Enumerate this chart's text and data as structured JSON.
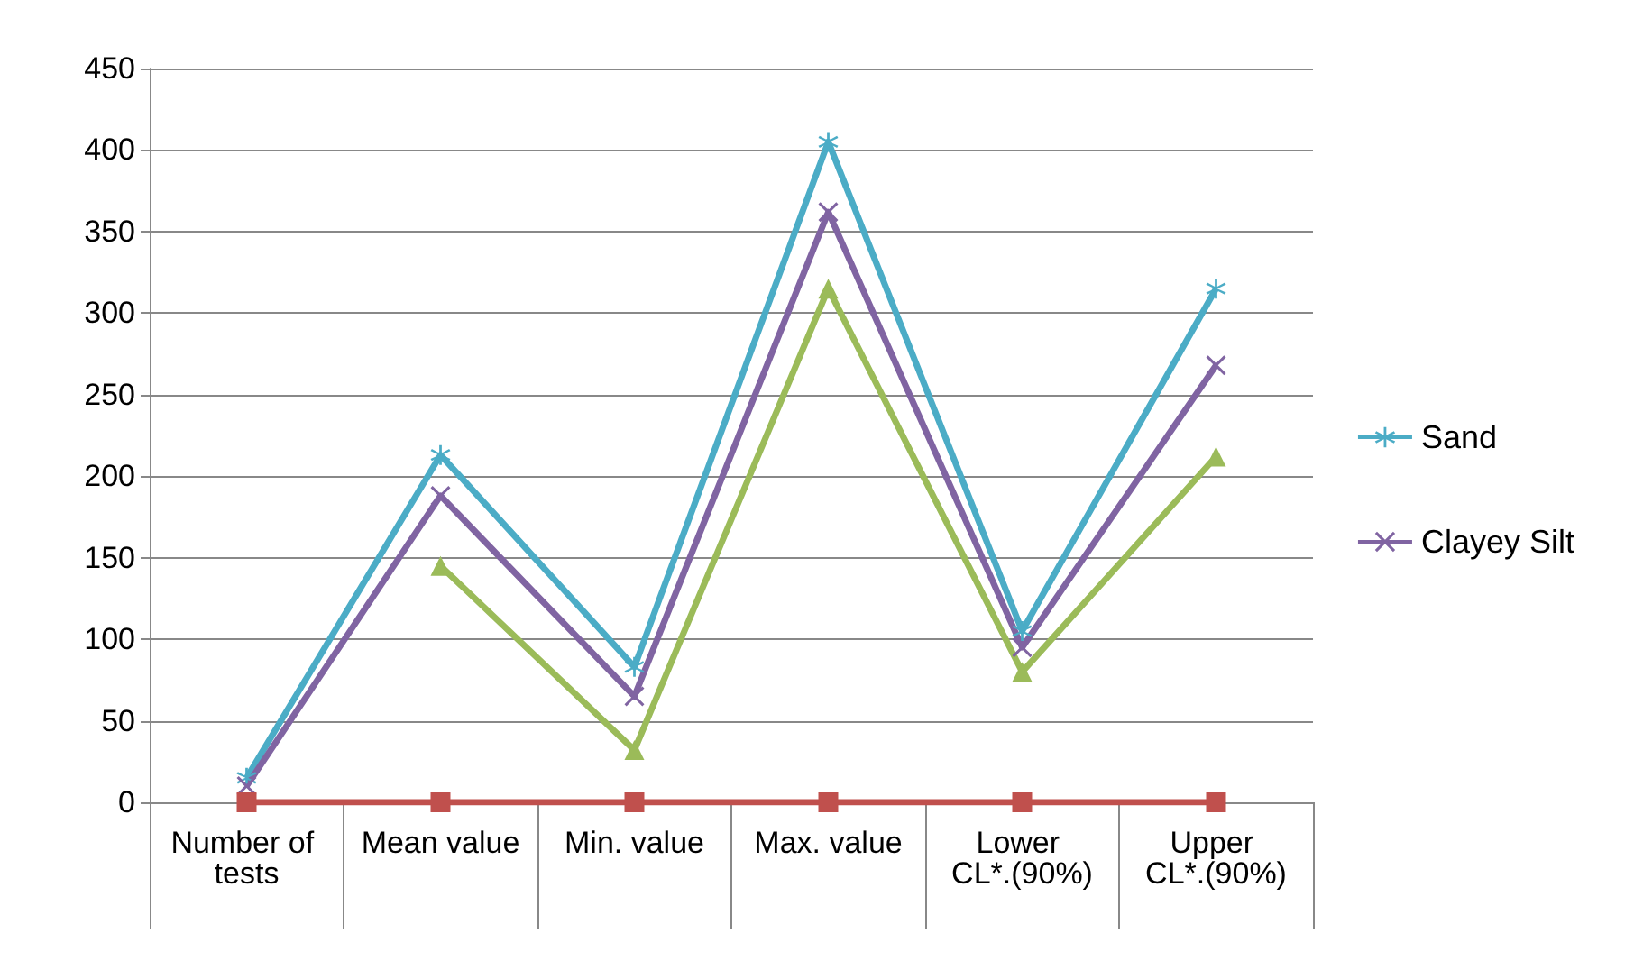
{
  "chart_data": {
    "type": "line",
    "categories": [
      "Number of tests",
      "Mean value",
      "Min. value",
      "Max. value",
      "Lower CL*.(90%)",
      "Upper CL*.(90%)"
    ],
    "series": [
      {
        "name": "Sand",
        "color": "#4bacc6",
        "marker": "star",
        "values": [
          15,
          213,
          83,
          405,
          105,
          315
        ]
      },
      {
        "name": "Clayey Silt",
        "color": "#8064a2",
        "marker": "cross",
        "values": [
          10,
          188,
          65,
          362,
          95,
          268
        ]
      },
      {
        "color": "#9bbb59",
        "marker": "triangle",
        "values": [
          null,
          145,
          32,
          315,
          80,
          212
        ]
      },
      {
        "color": "#c0504d",
        "marker": "square",
        "values": [
          0,
          0,
          0,
          0,
          0,
          0
        ]
      }
    ],
    "ylim": [
      0,
      450
    ],
    "yticks": [
      0,
      50,
      100,
      150,
      200,
      250,
      300,
      350,
      400,
      450
    ],
    "grid": "y",
    "legend": "right"
  }
}
